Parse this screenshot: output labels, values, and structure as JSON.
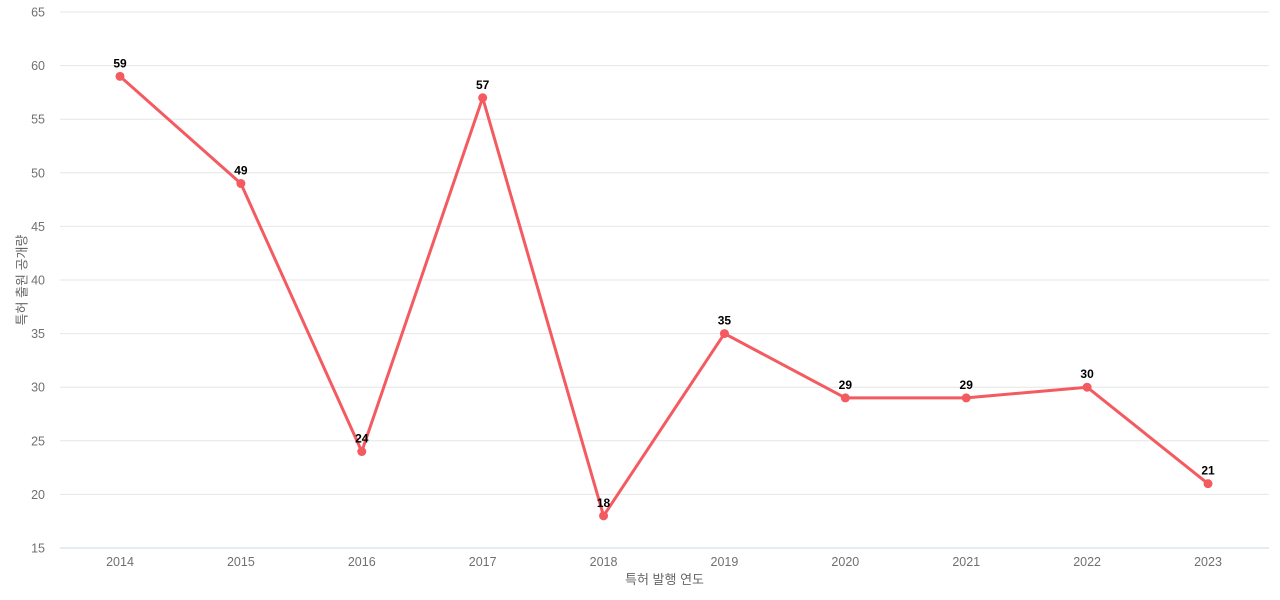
{
  "chart_data": {
    "type": "line",
    "title": "",
    "xlabel": "특허 발행 연도",
    "ylabel": "특허 출원 공개량",
    "categories": [
      "2014",
      "2015",
      "2016",
      "2017",
      "2018",
      "2019",
      "2020",
      "2021",
      "2022",
      "2023"
    ],
    "series": [
      {
        "name": "특허 출원 공개량",
        "values": [
          59,
          49,
          24,
          57,
          18,
          35,
          29,
          29,
          30,
          21
        ]
      }
    ],
    "data_labels_shown": true,
    "ylim": [
      15,
      65
    ],
    "ytick_step": 5,
    "ytick_labels": [
      "15",
      "20",
      "25",
      "30",
      "35",
      "40",
      "45",
      "50",
      "55",
      "60",
      "65"
    ],
    "grid": "horizontal",
    "legend_position": "none",
    "colors": {
      "line": "#f45b61",
      "marker": "#f45b61",
      "gridline": "#e6e6e6",
      "axis_line": "#ccd6eb",
      "tick_label": "#707070",
      "axis_title": "#666666",
      "data_label": "#000000",
      "background": "#ffffff"
    }
  }
}
